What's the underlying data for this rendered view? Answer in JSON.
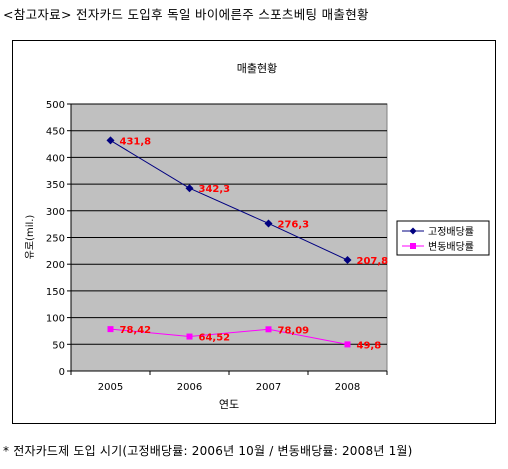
{
  "heading": "<참고자료> 전자카드 도입후 독일 바이에른주 스포츠베팅 매출현황",
  "footnote": "* 전자카드제 도입 시기(고정배당률: 2006년 10월 / 변동배당률: 2008년 1월)",
  "chart_data": {
    "type": "line",
    "title": "매출현황",
    "xlabel": "연도",
    "ylabel": "유로(mil.)",
    "categories": [
      "2005",
      "2006",
      "2007",
      "2008"
    ],
    "ylim": [
      0,
      500
    ],
    "yticks": [
      "0",
      "50",
      "100",
      "150",
      "200",
      "250",
      "300",
      "350",
      "400",
      "450",
      "500"
    ],
    "grid": true,
    "legend_position": "right",
    "series": [
      {
        "name": "고정배당률",
        "values": [
          431.8,
          342.3,
          276.3,
          207.8
        ],
        "labels": [
          "431,8",
          "342,3",
          "276,3",
          "207,8"
        ],
        "color": "#000080",
        "marker": "diamond"
      },
      {
        "name": "변동배당률",
        "values": [
          78.42,
          64.52,
          78.09,
          49.8
        ],
        "labels": [
          "78,42",
          "64,52",
          "78,09",
          "49,8"
        ],
        "color": "#ff00ff",
        "marker": "square"
      }
    ],
    "label_color": "#ff0000",
    "plot_background": "#c0c0c0"
  }
}
